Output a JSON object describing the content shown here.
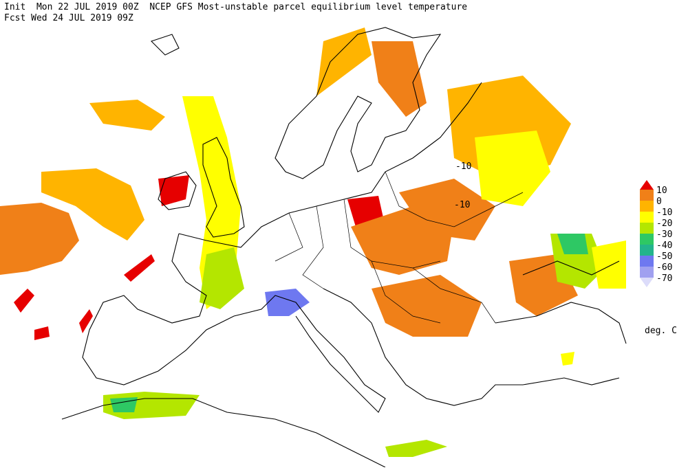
{
  "header": {
    "line1": "Init  Mon 22 JUL 2019 00Z  NCEP GFS Most-unstable parcel equilibrium level temperature",
    "line2": "Fcst Wed 24 JUL 2019 09Z"
  },
  "colorbar": {
    "levels": [
      "10",
      "0",
      "-10",
      "-20",
      "-30",
      "-40",
      "-50",
      "-60",
      "-70"
    ],
    "colors": [
      "#e60000",
      "#f08018",
      "#ffb400",
      "#ffff00",
      "#b4e600",
      "#2ec864",
      "#23b48c",
      "#6e78f0",
      "#a0a0f0",
      "#dcdcfa"
    ],
    "unit": "deg. C"
  },
  "map_labels": [
    "-10",
    "-10"
  ]
}
